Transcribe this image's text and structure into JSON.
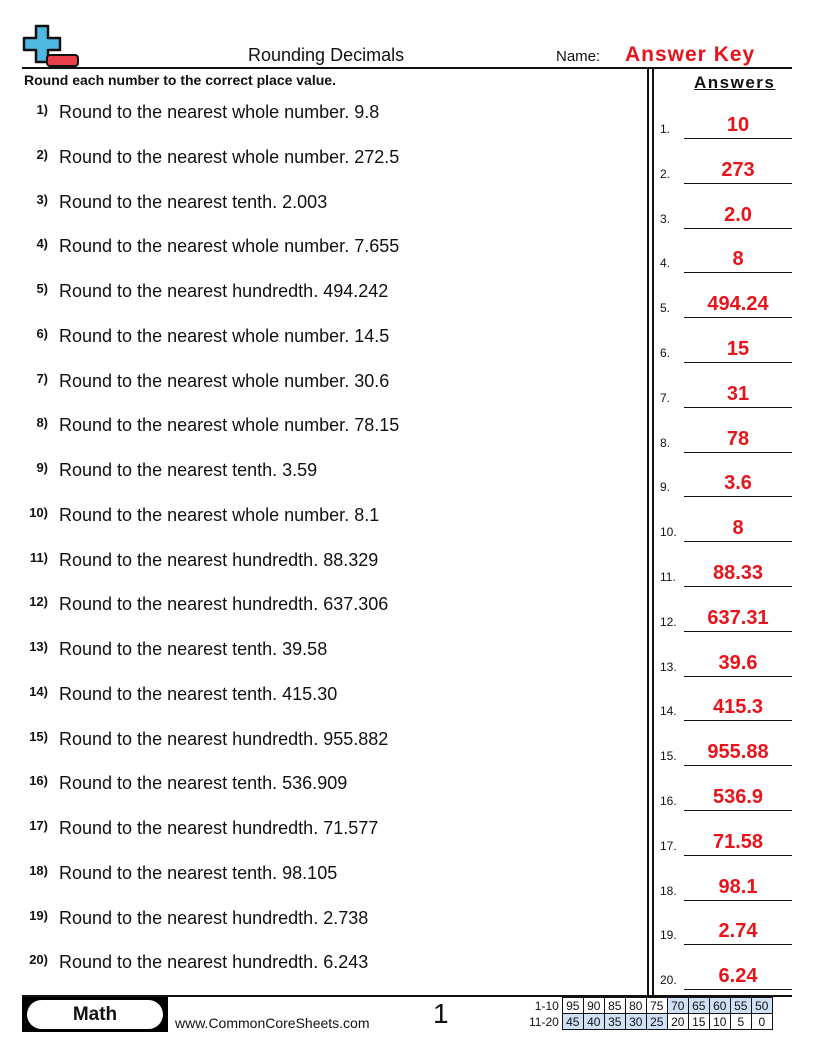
{
  "header": {
    "title": "Rounding Decimals",
    "name_label": "Name:",
    "name_value": "Answer Key",
    "logo": "plus-minus-logo-icon"
  },
  "instructions": "Round each number to the correct place value.",
  "answers_heading": "Answers",
  "colors": {
    "accent_red": "#e8141b",
    "logo_blue": "#4db8e0",
    "score_highlight": "#cfe0f7"
  },
  "questions": [
    {
      "num": "1)",
      "text": "Round to the nearest whole number. 9.8",
      "answer_num": "1.",
      "answer": "10"
    },
    {
      "num": "2)",
      "text": "Round to the nearest whole number. 272.5",
      "answer_num": "2.",
      "answer": "273"
    },
    {
      "num": "3)",
      "text": "Round to the nearest tenth. 2.003",
      "answer_num": "3.",
      "answer": "2.0"
    },
    {
      "num": "4)",
      "text": "Round to the nearest whole number. 7.655",
      "answer_num": "4.",
      "answer": "8"
    },
    {
      "num": "5)",
      "text": "Round to the nearest hundredth. 494.242",
      "answer_num": "5.",
      "answer": "494.24"
    },
    {
      "num": "6)",
      "text": "Round to the nearest whole number. 14.5",
      "answer_num": "6.",
      "answer": "15"
    },
    {
      "num": "7)",
      "text": "Round to the nearest whole number. 30.6",
      "answer_num": "7.",
      "answer": "31"
    },
    {
      "num": "8)",
      "text": "Round to the nearest whole number. 78.15",
      "answer_num": "8.",
      "answer": "78"
    },
    {
      "num": "9)",
      "text": "Round to the nearest tenth. 3.59",
      "answer_num": "9.",
      "answer": "3.6"
    },
    {
      "num": "10)",
      "text": "Round to the nearest whole number. 8.1",
      "answer_num": "10.",
      "answer": "8"
    },
    {
      "num": "11)",
      "text": "Round to the nearest hundredth. 88.329",
      "answer_num": "11.",
      "answer": "88.33"
    },
    {
      "num": "12)",
      "text": "Round to the nearest hundredth. 637.306",
      "answer_num": "12.",
      "answer": "637.31"
    },
    {
      "num": "13)",
      "text": "Round to the nearest tenth. 39.58",
      "answer_num": "13.",
      "answer": "39.6"
    },
    {
      "num": "14)",
      "text": "Round to the nearest tenth. 415.30",
      "answer_num": "14.",
      "answer": "415.3"
    },
    {
      "num": "15)",
      "text": "Round to the nearest hundredth. 955.882",
      "answer_num": "15.",
      "answer": "955.88"
    },
    {
      "num": "16)",
      "text": "Round to the nearest tenth. 536.909",
      "answer_num": "16.",
      "answer": "536.9"
    },
    {
      "num": "17)",
      "text": "Round to the nearest hundredth. 71.577",
      "answer_num": "17.",
      "answer": "71.58"
    },
    {
      "num": "18)",
      "text": "Round to the nearest tenth. 98.105",
      "answer_num": "18.",
      "answer": "98.1"
    },
    {
      "num": "19)",
      "text": "Round to the nearest hundredth. 2.738",
      "answer_num": "19.",
      "answer": "2.74"
    },
    {
      "num": "20)",
      "text": "Round to the nearest hundredth. 6.243",
      "answer_num": "20.",
      "answer": "6.24"
    }
  ],
  "footer": {
    "subject": "Math",
    "website": "www.CommonCoreSheets.com",
    "page": "1",
    "score_rows": [
      {
        "label": "1-10",
        "values": [
          "95",
          "90",
          "85",
          "80",
          "75",
          "70",
          "65",
          "60",
          "55",
          "50"
        ],
        "highlight_from": 5
      },
      {
        "label": "11-20",
        "values": [
          "45",
          "40",
          "35",
          "30",
          "25",
          "20",
          "15",
          "10",
          "5",
          "0"
        ],
        "highlight_to": 4
      }
    ]
  }
}
